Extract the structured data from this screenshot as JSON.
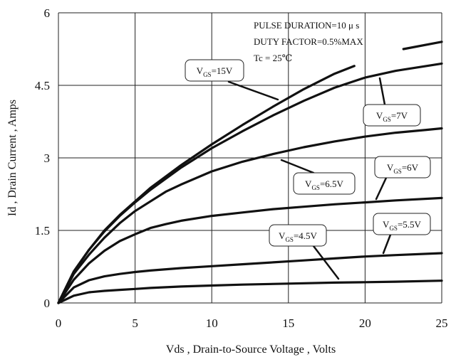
{
  "chart_data": {
    "type": "line",
    "title": "",
    "xlabel": "Vds , Drain-to-Source Voltage , Volts",
    "ylabel": "Id , Drain Current , Amps",
    "xlim": [
      0,
      25
    ],
    "ylim": [
      0,
      6
    ],
    "xticks": [
      0,
      5,
      10,
      15,
      20,
      25
    ],
    "yticks": [
      0,
      1.5,
      3,
      4.5,
      6
    ],
    "xtick_labels": [
      "0",
      "5",
      "10",
      "15",
      "20",
      "25"
    ],
    "ytick_labels": [
      "0",
      "1.5",
      "3",
      "4.5",
      "6"
    ],
    "grid": true,
    "notes": [
      "PULSE DURATION=10 μ s",
      "DUTY FACTOR=0.5%MAX",
      "Tc = 25℃"
    ],
    "series": [
      {
        "name": "VGS=15V",
        "x": [
          0,
          1,
          2,
          3,
          4,
          5,
          6,
          8,
          10,
          12,
          14,
          16,
          18,
          19.3
        ],
        "y": [
          0,
          0.65,
          1.1,
          1.5,
          1.82,
          2.1,
          2.38,
          2.85,
          3.28,
          3.68,
          4.06,
          4.42,
          4.74,
          4.9
        ]
      },
      {
        "name": "VGS=7V",
        "x": [
          0,
          1,
          2,
          3,
          4,
          5,
          6,
          8,
          10,
          12,
          14,
          16,
          18,
          20,
          22,
          24,
          25
        ],
        "y": [
          0,
          0.65,
          1.1,
          1.48,
          1.8,
          2.08,
          2.34,
          2.8,
          3.2,
          3.55,
          3.88,
          4.18,
          4.45,
          4.66,
          4.8,
          4.9,
          4.95
        ]
      },
      {
        "name": "",
        "x": [
          22.5,
          25
        ],
        "y": [
          5.25,
          5.4
        ]
      },
      {
        "name": "VGS=6.5V",
        "x": [
          0,
          1,
          2,
          3,
          4,
          5,
          6,
          7,
          8,
          10,
          12,
          14,
          16,
          18,
          20,
          22,
          24,
          25
        ],
        "y": [
          0,
          0.6,
          1.0,
          1.35,
          1.65,
          1.9,
          2.1,
          2.3,
          2.45,
          2.72,
          2.92,
          3.08,
          3.22,
          3.34,
          3.44,
          3.52,
          3.58,
          3.61
        ]
      },
      {
        "name": "VGS=6V",
        "x": [
          0,
          1,
          2,
          3,
          4,
          5,
          6,
          7,
          8,
          10,
          12,
          14,
          16,
          18,
          20,
          22,
          25
        ],
        "y": [
          0,
          0.48,
          0.82,
          1.08,
          1.28,
          1.42,
          1.55,
          1.63,
          1.7,
          1.8,
          1.87,
          1.94,
          1.99,
          2.04,
          2.08,
          2.12,
          2.17
        ]
      },
      {
        "name": "VGS=5.5V",
        "x": [
          0,
          1,
          2,
          3,
          4,
          5,
          6,
          8,
          10,
          12,
          14,
          16,
          18,
          20,
          22,
          25
        ],
        "y": [
          0,
          0.32,
          0.47,
          0.55,
          0.6,
          0.64,
          0.67,
          0.72,
          0.76,
          0.8,
          0.84,
          0.88,
          0.92,
          0.96,
          0.99,
          1.03
        ]
      },
      {
        "name": "VGS=4.5V",
        "x": [
          0,
          1,
          2,
          3,
          4,
          5,
          6,
          8,
          10,
          12,
          15,
          18,
          20,
          22,
          25
        ],
        "y": [
          0,
          0.15,
          0.22,
          0.25,
          0.27,
          0.29,
          0.31,
          0.34,
          0.36,
          0.38,
          0.4,
          0.42,
          0.43,
          0.44,
          0.46
        ]
      }
    ]
  }
}
